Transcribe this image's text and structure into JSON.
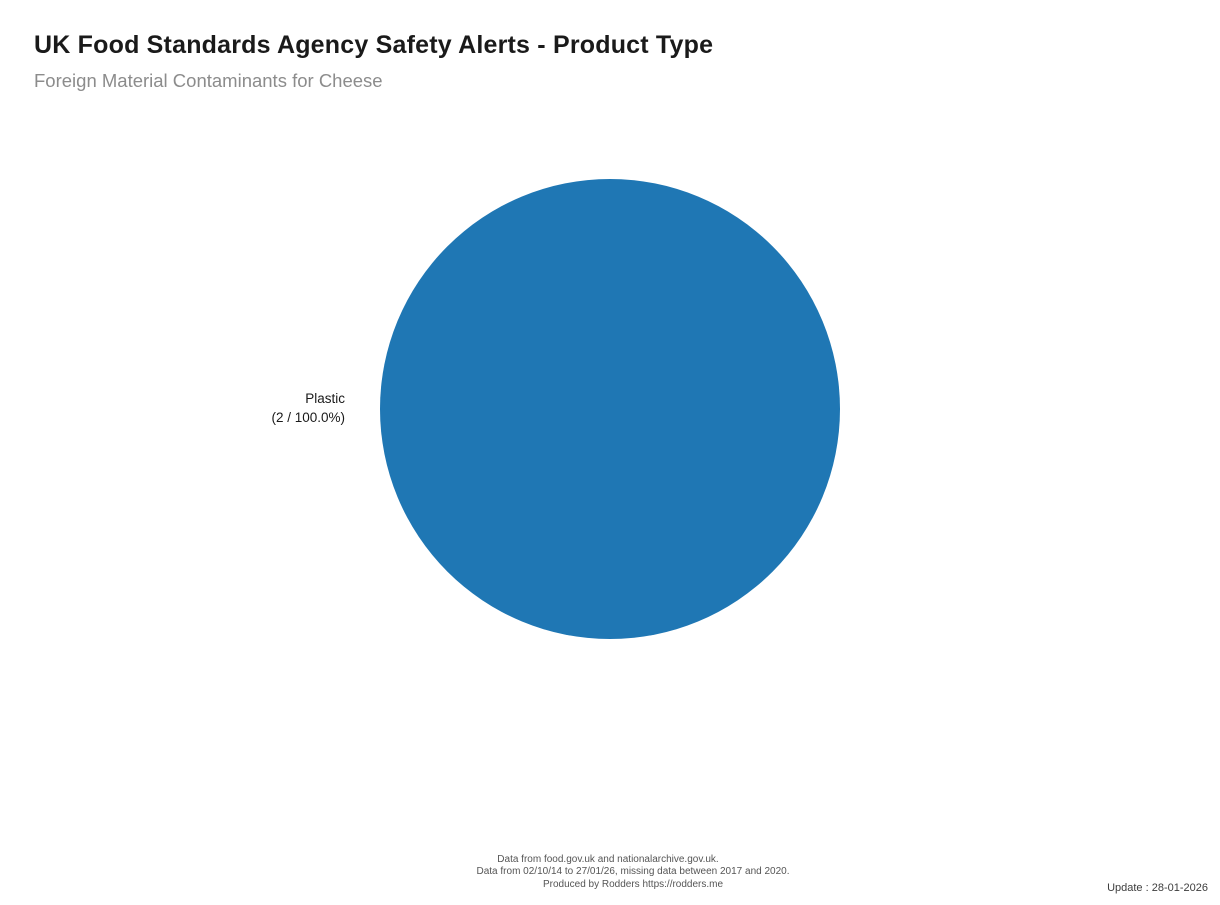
{
  "header": {
    "title": "UK Food Standards Agency Safety Alerts - Product Type",
    "subtitle": "Foreign Material Contaminants for Cheese"
  },
  "chart_data": {
    "type": "pie",
    "title": "UK Food Standards Agency Safety Alerts - Product Type",
    "subtitle": "Foreign Material Contaminants for Cheese",
    "total": 2,
    "legend": "none",
    "slices": [
      {
        "label": "Plastic",
        "value": 2,
        "percent": 100.0,
        "label_detail": "(2 / 100.0%)",
        "color": "#1f77b4"
      }
    ]
  },
  "footer": {
    "line1": "Data from food.gov.uk and nationalarchive.gov.uk.",
    "line2": "Data from 02/10/14 to 27/01/26, missing data between 2017 and 2020.",
    "line3": "Produced by Rodders https://rodders.me",
    "update": "Update : 28-01-2026"
  },
  "colors": {
    "title": "#1a1a1a",
    "subtitle": "#8c8c8c",
    "slice_blue": "#1f77b4",
    "footer_text": "#555555",
    "update_text": "#3d3d3d",
    "background": "#ffffff"
  }
}
